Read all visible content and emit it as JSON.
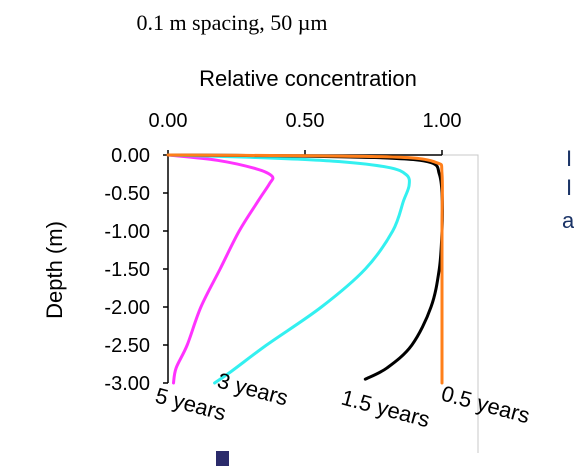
{
  "chart_data": {
    "type": "line",
    "title": "0.1 m spacing, 50 µm",
    "xlabel": "Relative concentration",
    "ylabel": "Depth (m)",
    "xlim": [
      0,
      1
    ],
    "ylim": [
      -3,
      0
    ],
    "x_ticks": [
      "0.00",
      "0.50",
      "1.00"
    ],
    "x_tick_values": [
      0,
      0.5,
      1
    ],
    "y_ticks": [
      "0.00",
      "-0.50",
      "-1.00",
      "-1.50",
      "-2.00",
      "-2.50",
      "-3.00"
    ],
    "y_tick_values": [
      0,
      -0.5,
      -1,
      -1.5,
      -2,
      -2.5,
      -3
    ],
    "x_axis_position": "top",
    "series": [
      {
        "name": "5 years",
        "color": "#ff33ff",
        "points": [
          [
            0.0,
            0.0
          ],
          [
            0.18,
            -0.07
          ],
          [
            0.32,
            -0.18
          ],
          [
            0.38,
            -0.28
          ],
          [
            0.37,
            -0.38
          ],
          [
            0.33,
            -0.6
          ],
          [
            0.26,
            -1.0
          ],
          [
            0.19,
            -1.5
          ],
          [
            0.12,
            -2.0
          ],
          [
            0.07,
            -2.5
          ],
          [
            0.03,
            -2.8
          ],
          [
            0.02,
            -3.0
          ]
        ]
      },
      {
        "name": "3 years",
        "color": "#33f0f0",
        "points": [
          [
            0.0,
            0.0
          ],
          [
            0.3,
            -0.03
          ],
          [
            0.6,
            -0.08
          ],
          [
            0.8,
            -0.16
          ],
          [
            0.87,
            -0.26
          ],
          [
            0.88,
            -0.4
          ],
          [
            0.86,
            -0.6
          ],
          [
            0.82,
            -1.0
          ],
          [
            0.72,
            -1.5
          ],
          [
            0.56,
            -2.0
          ],
          [
            0.36,
            -2.5
          ],
          [
            0.23,
            -2.85
          ],
          [
            0.17,
            -3.0
          ]
        ]
      },
      {
        "name": "1.5 years",
        "color": "#000000",
        "points": [
          [
            0.0,
            0.0
          ],
          [
            0.4,
            -0.01
          ],
          [
            0.8,
            -0.04
          ],
          [
            0.96,
            -0.1
          ],
          [
            0.99,
            -0.25
          ],
          [
            1.0,
            -0.5
          ],
          [
            1.0,
            -1.0
          ],
          [
            0.99,
            -1.5
          ],
          [
            0.96,
            -2.0
          ],
          [
            0.89,
            -2.5
          ],
          [
            0.8,
            -2.8
          ],
          [
            0.72,
            -2.95
          ]
        ]
      },
      {
        "name": "0.5 years",
        "color": "#ff7f1a",
        "points": [
          [
            0.0,
            0.0
          ],
          [
            0.5,
            -0.01
          ],
          [
            0.85,
            -0.03
          ],
          [
            0.98,
            -0.1
          ],
          [
            1.0,
            -0.25
          ],
          [
            1.0,
            -1.0
          ],
          [
            1.0,
            -2.0
          ],
          [
            1.0,
            -3.0
          ]
        ]
      }
    ],
    "grid": false,
    "legend": "inline curve labels"
  },
  "colors": {
    "axis": "#000000",
    "frame": "#c8c8c8",
    "marker": "#2b2b6b",
    "partial_text": "#1a3366"
  },
  "partial_letters": [
    "I",
    "I",
    "a"
  ]
}
